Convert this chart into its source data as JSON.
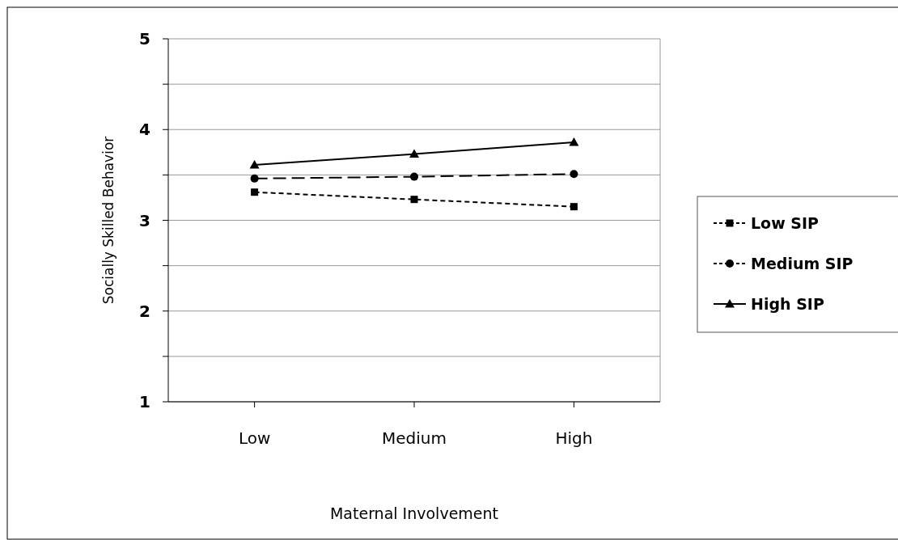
{
  "chart_data": {
    "type": "line",
    "xlabel": "Maternal Involvement",
    "ylabel": "Socially Skilled Behavior",
    "categories": [
      "Low",
      "Medium",
      "High"
    ],
    "series": [
      {
        "name": "Low SIP",
        "color": "#000000",
        "values": [
          3.31,
          3.23,
          3.15
        ],
        "marker": "square",
        "line_style": "dotted"
      },
      {
        "name": "Medium SIP",
        "color": "#000000",
        "values": [
          3.46,
          3.48,
          3.51
        ],
        "marker": "circle",
        "line_style": "dashed"
      },
      {
        "name": "High SIP",
        "color": "#000000",
        "values": [
          3.61,
          3.73,
          3.86
        ],
        "marker": "triangle",
        "line_style": "solid"
      }
    ],
    "ylim": [
      1,
      5
    ],
    "yticks": [
      1,
      {
        "value": 1.5,
        "label": null
      },
      2,
      {
        "value": 2.5,
        "label": null
      },
      3,
      {
        "value": 3.5,
        "label": null
      },
      4,
      {
        "value": 4.5,
        "label": null
      },
      5
    ],
    "grid": "y",
    "legend": "right"
  }
}
